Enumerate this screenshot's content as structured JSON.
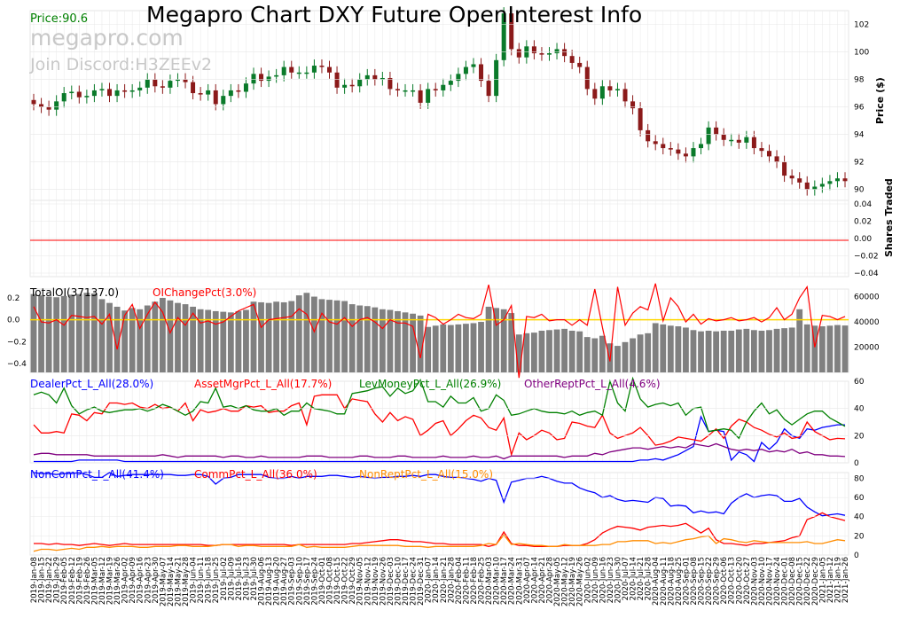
{
  "header": {
    "title": "Megapro Chart DXY Future OpenInterest Info",
    "price_label": "Price:90.6",
    "watermark_site": "megapro.com",
    "watermark_discord": "Join Discord:H3ZEEv2"
  },
  "axes": {
    "price_title": "Price ($)",
    "volume_title": "Shares\nTraded",
    "price_ticks": [
      "90",
      "92",
      "94",
      "96",
      "98",
      "100",
      "102"
    ],
    "volume_ticks": [
      "−0.04",
      "−0.02",
      "0.00",
      "0.02",
      "0.04"
    ],
    "oi_left_ticks": [
      "−0.4",
      "−0.2",
      "0.0",
      "0.2"
    ],
    "oi_right_ticks": [
      "20000",
      "40000",
      "60000"
    ],
    "pct_ticks": [
      "0",
      "20",
      "40",
      "60"
    ],
    "pct2_ticks": [
      "0",
      "20",
      "40",
      "60",
      "80"
    ]
  },
  "legends": {
    "total_oi": "TotalOI(37137.0)",
    "oi_change": "OIChangePct(3.0%)",
    "dealer": "DealerPct_L_All(28.0%)",
    "asset_mgr": "AssetMgrPct_L_All(17.7%)",
    "lev_money": "LevMoneyPct_L_All(26.9%)",
    "other_rept": "OtherReptPct_L_All(4.6%)",
    "noncom": "NonComPct_L_All(41.4%)",
    "comm": "CommPct_L_All(36.0%)",
    "nonrept": "NonReptPct_L_All(15.0%)"
  },
  "colors": {
    "up": "#0a7a2a",
    "down": "#8b1a1a",
    "bar": "#808080",
    "red": "#ff0000",
    "blue": "#0000ff",
    "green": "#008000",
    "purple": "#800080",
    "orange": "#ff8c00",
    "yellow": "#ffd700"
  },
  "chart_data": {
    "type": "line",
    "dates": [
      "2019-Jan-08",
      "2019-Jan-15",
      "2019-Jan-22",
      "2019-Jan-29",
      "2019-Feb-05",
      "2019-Feb-12",
      "2019-Feb-19",
      "2019-Feb-26",
      "2019-Mar-05",
      "2019-Mar-12",
      "2019-Mar-19",
      "2019-Mar-26",
      "2019-Apr-02",
      "2019-Apr-09",
      "2019-Apr-16",
      "2019-Apr-23",
      "2019-Apr-30",
      "2019-May-07",
      "2019-May-14",
      "2019-May-21",
      "2019-May-28",
      "2019-Jun-04",
      "2019-Jun-11",
      "2019-Jun-18",
      "2019-Jun-25",
      "2019-Jul-02",
      "2019-Jul-09",
      "2019-Jul-16",
      "2019-Jul-23",
      "2019-Jul-30",
      "2019-Aug-06",
      "2019-Aug-13",
      "2019-Aug-20",
      "2019-Aug-27",
      "2019-Sep-03",
      "2019-Sep-10",
      "2019-Sep-17",
      "2019-Sep-24",
      "2019-Oct-01",
      "2019-Oct-08",
      "2019-Oct-15",
      "2019-Oct-22",
      "2019-Oct-29",
      "2019-Nov-05",
      "2019-Nov-12",
      "2019-Nov-19",
      "2019-Nov-26",
      "2019-Dec-03",
      "2019-Dec-10",
      "2019-Dec-17",
      "2019-Dec-24",
      "2019-Dec-31",
      "2020-Jan-07",
      "2020-Jan-14",
      "2020-Jan-21",
      "2020-Jan-28",
      "2020-Feb-04",
      "2020-Feb-11",
      "2020-Feb-18",
      "2020-Feb-25",
      "2020-Mar-03",
      "2020-Mar-10",
      "2020-Mar-17",
      "2020-Mar-24",
      "2020-Mar-31",
      "2020-Apr-07",
      "2020-Apr-14",
      "2020-Apr-21",
      "2020-Apr-28",
      "2020-May-05",
      "2020-May-12",
      "2020-May-19",
      "2020-May-26",
      "2020-Jun-02",
      "2020-Jun-09",
      "2020-Jun-16",
      "2020-Jun-23",
      "2020-Jun-30",
      "2020-Jul-07",
      "2020-Jul-14",
      "2020-Jul-21",
      "2020-Jul-28",
      "2020-Aug-04",
      "2020-Aug-11",
      "2020-Aug-18",
      "2020-Aug-25",
      "2020-Sep-01",
      "2020-Sep-08",
      "2020-Sep-15",
      "2020-Sep-22",
      "2020-Sep-29",
      "2020-Oct-06",
      "2020-Oct-13",
      "2020-Oct-20",
      "2020-Oct-27",
      "2020-Nov-03",
      "2020-Nov-10",
      "2020-Nov-17",
      "2020-Nov-24",
      "2020-Dec-01",
      "2020-Dec-08",
      "2020-Dec-15",
      "2020-Dec-22",
      "2020-Dec-29",
      "2021-Jan-05",
      "2021-Jan-12",
      "2021-Jan-19",
      "2021-Jan-26"
    ],
    "price_close": [
      96.2,
      96.0,
      95.8,
      96.4,
      97.0,
      97.1,
      96.7,
      96.8,
      97.2,
      97.3,
      96.8,
      97.2,
      97.1,
      97.2,
      97.4,
      98.0,
      97.5,
      97.4,
      97.9,
      98.0,
      97.8,
      97.0,
      96.9,
      97.2,
      96.2,
      96.8,
      97.2,
      97.1,
      97.7,
      98.4,
      97.9,
      98.2,
      98.3,
      98.9,
      98.5,
      98.5,
      98.5,
      99.0,
      98.9,
      98.5,
      97.4,
      97.6,
      97.5,
      98.0,
      98.3,
      98.0,
      98.1,
      97.3,
      97.2,
      97.2,
      97.2,
      96.3,
      97.3,
      97.2,
      97.6,
      97.9,
      98.4,
      98.9,
      99.1,
      97.9,
      96.8,
      99.4,
      102.8,
      100.2,
      99.6,
      100.4,
      99.9,
      99.8,
      99.9,
      100.2,
      99.7,
      99.2,
      98.9,
      97.3,
      96.6,
      97.5,
      97.2,
      97.3,
      96.4,
      95.9,
      94.3,
      93.5,
      93.3,
      93.0,
      92.9,
      92.6,
      92.4,
      93.0,
      93.3,
      94.5,
      94.0,
      93.6,
      93.6,
      93.4,
      93.8,
      93.0,
      92.8,
      92.4,
      92.0,
      91.0,
      90.8,
      90.5,
      90.0,
      90.2,
      90.4,
      90.6,
      90.8,
      90.6
    ],
    "open_interest": [
      62000,
      61000,
      60000,
      59500,
      60500,
      61500,
      62000,
      63000,
      62500,
      58000,
      55000,
      52000,
      49000,
      51000,
      50000,
      53000,
      56000,
      59000,
      57000,
      55000,
      54000,
      52000,
      50000,
      49500,
      48500,
      48000,
      47500,
      48500,
      49500,
      56000,
      55500,
      55000,
      56000,
      55500,
      56500,
      61000,
      63000,
      60000,
      58000,
      57500,
      57000,
      56500,
      54000,
      53000,
      52500,
      51500,
      50000,
      49500,
      48500,
      47500,
      46500,
      45000,
      36000,
      37000,
      38000,
      37500,
      38000,
      38500,
      39000,
      40000,
      52000,
      51000,
      50000,
      47000,
      30000,
      31000,
      31500,
      33000,
      33500,
      34000,
      34500,
      33000,
      32500,
      28000,
      27000,
      29000,
      23000,
      21000,
      24000,
      27000,
      30000,
      31000,
      39000,
      38000,
      37000,
      36500,
      35500,
      33500,
      32500,
      33000,
      32500,
      33000,
      33000,
      34000,
      34500,
      33500,
      33000,
      33500,
      34500,
      35000,
      35500,
      50000,
      38000,
      37000,
      36500,
      37000,
      37500,
      37137
    ],
    "oi_change_pct": [
      0.12,
      -0.02,
      -0.03,
      0.0,
      -0.05,
      0.04,
      0.03,
      0.02,
      0.03,
      -0.04,
      0.05,
      -0.27,
      0.04,
      0.14,
      -0.08,
      0.05,
      0.16,
      0.07,
      -0.12,
      0.02,
      -0.05,
      0.06,
      -0.03,
      -0.01,
      -0.04,
      -0.02,
      0.03,
      0.08,
      0.11,
      0.14,
      -0.07,
      0.0,
      0.01,
      0.02,
      0.03,
      0.1,
      0.05,
      -0.11,
      0.06,
      -0.02,
      -0.04,
      0.02,
      -0.06,
      0.0,
      0.02,
      -0.02,
      -0.08,
      0.0,
      -0.03,
      -0.03,
      -0.06,
      -0.35,
      0.05,
      0.02,
      -0.04,
      0.0,
      0.05,
      0.02,
      0.01,
      0.05,
      0.32,
      -0.05,
      0.0,
      0.13,
      -0.53,
      0.03,
      0.02,
      0.05,
      -0.01,
      0.0,
      0.0,
      -0.05,
      0.0,
      -0.05,
      0.28,
      -0.07,
      -0.38,
      0.3,
      -0.05,
      0.06,
      0.12,
      0.09,
      0.33,
      -0.01,
      0.2,
      0.12,
      -0.02,
      0.05,
      -0.04,
      0.01,
      -0.01,
      0.0,
      0.02,
      -0.01,
      0.0,
      0.02,
      -0.02,
      0.02,
      0.11,
      0.0,
      0.05,
      0.2,
      0.3,
      -0.25,
      0.04,
      0.03,
      0.0,
      0.03
    ],
    "dealer_pct": [
      1,
      1,
      1,
      1,
      1,
      1,
      2,
      2,
      2,
      2,
      2,
      2,
      1,
      1,
      1,
      1,
      1,
      1,
      1,
      1,
      1,
      1,
      1,
      1,
      1,
      1,
      1,
      1,
      1,
      1,
      1,
      1,
      1,
      1,
      1,
      1,
      1,
      1,
      1,
      1,
      1,
      1,
      1,
      1,
      1,
      1,
      1,
      1,
      1,
      1,
      1,
      1,
      1,
      1,
      1,
      1,
      1,
      1,
      1,
      1,
      1,
      1,
      1,
      1,
      1,
      1,
      1,
      1,
      1,
      1,
      1,
      1,
      1,
      1,
      1,
      1,
      1,
      1,
      1,
      1,
      2,
      2,
      3,
      2,
      4,
      6,
      9,
      12,
      34,
      23,
      24,
      23,
      2,
      8,
      6,
      1,
      15,
      10,
      15,
      25,
      20,
      18,
      25,
      24,
      26,
      27,
      28,
      28
    ],
    "asset_mgr_pct": [
      28,
      22,
      22,
      23,
      22,
      36,
      35,
      31,
      37,
      36,
      44,
      44,
      43,
      44,
      41,
      40,
      43,
      40,
      41,
      38,
      44,
      31,
      39,
      37,
      38,
      40,
      38,
      38,
      42,
      41,
      42,
      37,
      38,
      38,
      42,
      44,
      28,
      49,
      50,
      50,
      50,
      40,
      47,
      46,
      45,
      36,
      30,
      37,
      31,
      34,
      32,
      20,
      24,
      29,
      31,
      20,
      25,
      31,
      35,
      33,
      26,
      24,
      33,
      6,
      22,
      17,
      20,
      24,
      22,
      17,
      18,
      30,
      29,
      27,
      26,
      35,
      22,
      18,
      20,
      22,
      26,
      20,
      13,
      14,
      16,
      19,
      18,
      17,
      16,
      20,
      25,
      18,
      27,
      32,
      30,
      26,
      24,
      21,
      19,
      22,
      18,
      19,
      30,
      23,
      20,
      17,
      18,
      17.7
    ],
    "lev_money_pct": [
      50,
      52,
      50,
      44,
      55,
      42,
      36,
      39,
      41,
      38,
      37,
      38,
      39,
      39,
      40,
      38,
      40,
      43,
      41,
      38,
      35,
      38,
      45,
      44,
      55,
      41,
      42,
      40,
      42,
      39,
      38,
      38,
      40,
      35,
      38,
      38,
      44,
      40,
      39,
      38,
      36,
      36,
      51,
      52,
      53,
      55,
      56,
      49,
      55,
      51,
      53,
      61,
      45,
      45,
      41,
      49,
      44,
      44,
      48,
      38,
      40,
      50,
      46,
      35,
      36,
      38,
      40,
      38,
      37,
      37,
      36,
      38,
      35,
      37,
      38,
      35,
      60,
      44,
      38,
      62,
      47,
      41,
      43,
      44,
      42,
      44,
      35,
      40,
      41,
      23,
      24,
      25,
      24,
      18,
      30,
      38,
      44,
      36,
      39,
      32,
      28,
      32,
      36,
      38,
      38,
      33,
      30,
      26.9
    ],
    "other_rept_pct": [
      6,
      7,
      7,
      6,
      6,
      6,
      6,
      6,
      5,
      5,
      5,
      5,
      5,
      5,
      5,
      5,
      5,
      6,
      5,
      4,
      5,
      5,
      5,
      5,
      5,
      4,
      5,
      5,
      4,
      4,
      5,
      4,
      4,
      4,
      4,
      4,
      5,
      5,
      5,
      4,
      4,
      4,
      4,
      5,
      5,
      4,
      4,
      4,
      5,
      5,
      4,
      4,
      4,
      4,
      5,
      4,
      4,
      4,
      5,
      4,
      4,
      5,
      3,
      5,
      5,
      5,
      5,
      5,
      5,
      5,
      4,
      5,
      5,
      5,
      7,
      6,
      8,
      9,
      10,
      11,
      11,
      10,
      11,
      12,
      11,
      12,
      11,
      14,
      13,
      12,
      14,
      12,
      10,
      9,
      10,
      9,
      10,
      8,
      9,
      8,
      10,
      7,
      8,
      6,
      6,
      5,
      5,
      4.6
    ],
    "noncom_pct": [
      86,
      85,
      85,
      84,
      85,
      85,
      86,
      84,
      81,
      81,
      86,
      82,
      83,
      84,
      84,
      84,
      84,
      84,
      84,
      83,
      83,
      84,
      84,
      82,
      74,
      80,
      81,
      84,
      84,
      84,
      84,
      81,
      80,
      80,
      82,
      80,
      82,
      82,
      82,
      83,
      83,
      82,
      81,
      82,
      81,
      80,
      81,
      81,
      82,
      82,
      83,
      82,
      84,
      84,
      82,
      81,
      81,
      80,
      79,
      77,
      80,
      78,
      55,
      76,
      78,
      80,
      80,
      82,
      80,
      77,
      75,
      75,
      70,
      67,
      65,
      60,
      62,
      58,
      56,
      57,
      56,
      55,
      60,
      59,
      51,
      52,
      51,
      44,
      46,
      44,
      45,
      43,
      54,
      60,
      64,
      60,
      62,
      63,
      62,
      56,
      56,
      59,
      50,
      45,
      41,
      42,
      43,
      41.4
    ],
    "comm_pct": [
      12,
      12,
      11,
      12,
      11,
      11,
      10,
      11,
      12,
      11,
      10,
      11,
      12,
      11,
      11,
      11,
      11,
      11,
      11,
      11,
      11,
      11,
      11,
      10,
      10,
      11,
      11,
      11,
      11,
      11,
      11,
      11,
      11,
      11,
      10,
      11,
      11,
      11,
      11,
      11,
      11,
      11,
      12,
      12,
      13,
      14,
      15,
      16,
      16,
      15,
      14,
      14,
      13,
      12,
      12,
      11,
      11,
      11,
      11,
      11,
      9,
      11,
      24,
      12,
      10,
      10,
      9,
      9,
      9,
      9,
      10,
      10,
      10,
      12,
      16,
      23,
      27,
      30,
      29,
      28,
      26,
      29,
      30,
      31,
      30,
      31,
      33,
      28,
      23,
      28,
      16,
      12,
      12,
      11,
      10,
      12,
      12,
      13,
      14,
      15,
      18,
      20,
      37,
      40,
      44,
      40,
      38,
      36.0
    ],
    "nonrept_pct": [
      4,
      6,
      6,
      5,
      6,
      7,
      6,
      8,
      8,
      9,
      8,
      9,
      9,
      9,
      8,
      8,
      9,
      9,
      9,
      10,
      10,
      9,
      9,
      9,
      10,
      11,
      11,
      9,
      10,
      10,
      9,
      9,
      9,
      9,
      9,
      11,
      8,
      9,
      8,
      8,
      8,
      8,
      9,
      10,
      10,
      10,
      10,
      10,
      10,
      9,
      9,
      9,
      8,
      9,
      9,
      9,
      9,
      9,
      9,
      10,
      12,
      11,
      21,
      11,
      12,
      11,
      10,
      10,
      9,
      9,
      11,
      10,
      10,
      10,
      10,
      11,
      11,
      14,
      14,
      15,
      15,
      15,
      12,
      13,
      12,
      14,
      16,
      17,
      19,
      20,
      12,
      17,
      16,
      14,
      13,
      15,
      14,
      13,
      13,
      13,
      13,
      13,
      14,
      12,
      12,
      14,
      16,
      15.0
    ]
  }
}
